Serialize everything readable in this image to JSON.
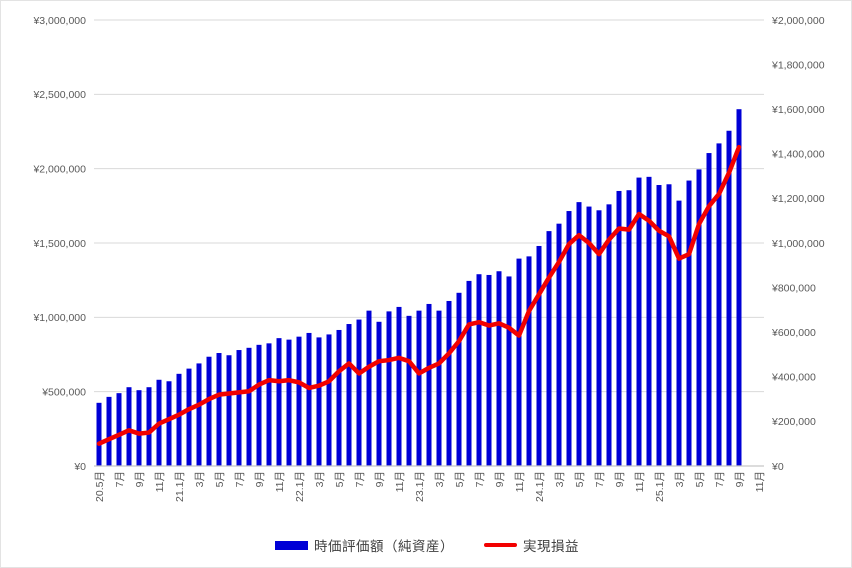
{
  "chart": {
    "background": "#FFFFFF",
    "border_color": "#E3E3E3",
    "gridline_color": "#D9D9D9",
    "axisline_color": "#C8C8C8",
    "tick_text_color": "#595959",
    "legend_text_color": "#404040"
  },
  "chart_data": {
    "type": "combo-bar-line",
    "title": "",
    "grid": true,
    "legend_position": "bottom",
    "categories": [
      "2020-05",
      "2020-06",
      "2020-07",
      "2020-08",
      "2020-09",
      "2020-10",
      "2020-11",
      "2020-12",
      "2021-01",
      "2021-02",
      "2021-03",
      "2021-04",
      "2021-05",
      "2021-06",
      "2021-07",
      "2021-08",
      "2021-09",
      "2021-10",
      "2021-11",
      "2021-12",
      "2022-01",
      "2022-02",
      "2022-03",
      "2022-04",
      "2022-05",
      "2022-06",
      "2022-07",
      "2022-08",
      "2022-09",
      "2022-10",
      "2022-11",
      "2022-12",
      "2023-01",
      "2023-02",
      "2023-03",
      "2023-04",
      "2023-05",
      "2023-06",
      "2023-07",
      "2023-08",
      "2023-09",
      "2023-10",
      "2023-11",
      "2023-12",
      "2024-01",
      "2024-02",
      "2024-03",
      "2024-04",
      "2024-05",
      "2024-06",
      "2024-07",
      "2024-08",
      "2024-09",
      "2024-10",
      "2024-11",
      "2024-12",
      "2025-01",
      "2025-02",
      "2025-03",
      "2025-04",
      "2025-05",
      "2025-06",
      "2025-07",
      "2025-08",
      "2025-09",
      "2025-10",
      "2025-11"
    ],
    "x_axis": {
      "total_slots": 67,
      "tick_every": 2,
      "tick_labels": [
        "20.5月",
        "7月",
        "9月",
        "11月",
        "21.1月",
        "3月",
        "5月",
        "7月",
        "9月",
        "11月",
        "22.1月",
        "3月",
        "5月",
        "7月",
        "9月",
        "11月",
        "23.1月",
        "3月",
        "5月",
        "7月",
        "9月",
        "11月",
        "24.1月",
        "3月",
        "5月",
        "7月",
        "9月",
        "11月",
        "25.1月",
        "3月",
        "5月",
        "7月",
        "9月",
        "11月"
      ]
    },
    "left_axis": {
      "min": 0,
      "max": 3000000,
      "step": 500000,
      "tick_labels": [
        "¥0",
        "¥500,000",
        "¥1,000,000",
        "¥1,500,000",
        "¥2,000,000",
        "¥2,500,000",
        "¥3,000,000"
      ]
    },
    "right_axis": {
      "min": 0,
      "max": 2000000,
      "step": 200000,
      "tick_labels": [
        "¥0",
        "¥200,000",
        "¥400,000",
        "¥600,000",
        "¥800,000",
        "¥1,000,000",
        "¥1,200,000",
        "¥1,400,000",
        "¥1,600,000",
        "¥1,800,000",
        "¥2,000,000"
      ]
    },
    "series": [
      {
        "name": "時価評価額（純資産）",
        "type": "bar",
        "axis": "left",
        "color": "#0000D6",
        "values": [
          425000,
          465000,
          490000,
          530000,
          510000,
          530000,
          580000,
          570000,
          620000,
          655000,
          690000,
          735000,
          760000,
          745000,
          780000,
          795000,
          815000,
          825000,
          860000,
          850000,
          870000,
          895000,
          865000,
          885000,
          915000,
          955000,
          985000,
          1045000,
          970000,
          1040000,
          1070000,
          1010000,
          1045000,
          1090000,
          1045000,
          1110000,
          1165000,
          1245000,
          1290000,
          1285000,
          1310000,
          1275000,
          1395000,
          1410000,
          1480000,
          1580000,
          1630000,
          1715000,
          1775000,
          1745000,
          1720000,
          1760000,
          1850000,
          1855000,
          1940000,
          1945000,
          1890000,
          1895000,
          1785000,
          1920000,
          1995000,
          2105000,
          2170000,
          2255000,
          2400000,
          null,
          null
        ]
      },
      {
        "name": "実現損益",
        "type": "line",
        "axis": "right",
        "color": "#F20000",
        "values": [
          100000,
          120000,
          140000,
          160000,
          145000,
          150000,
          190000,
          210000,
          230000,
          255000,
          275000,
          300000,
          320000,
          325000,
          330000,
          335000,
          365000,
          385000,
          380000,
          385000,
          375000,
          350000,
          360000,
          380000,
          425000,
          460000,
          415000,
          445000,
          470000,
          475000,
          485000,
          470000,
          415000,
          440000,
          460000,
          505000,
          560000,
          635000,
          645000,
          630000,
          640000,
          620000,
          585000,
          695000,
          770000,
          845000,
          915000,
          995000,
          1035000,
          1000000,
          950000,
          1015000,
          1065000,
          1060000,
          1130000,
          1100000,
          1055000,
          1030000,
          930000,
          950000,
          1085000,
          1165000,
          1220000,
          1315000,
          1430000,
          null,
          null
        ]
      }
    ]
  }
}
